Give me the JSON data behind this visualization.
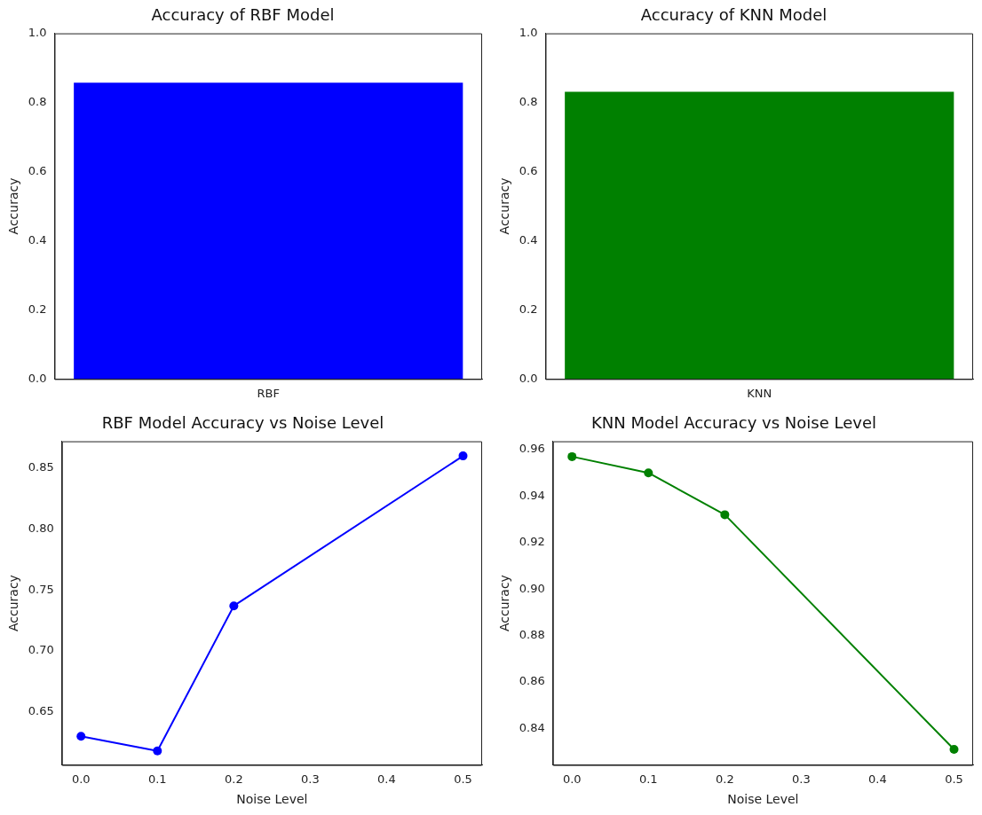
{
  "chart_data": [
    {
      "type": "bar",
      "title": "Accuracy of RBF Model",
      "ylabel": "Accuracy",
      "categories": [
        "RBF"
      ],
      "values": [
        0.857
      ],
      "color": "#0000ff",
      "ylim": [
        0,
        1
      ],
      "yticks": [
        {
          "value": 0,
          "label": "0.0"
        },
        0.2,
        0.4,
        0.6,
        0.8,
        {
          "value": 1,
          "label": "1.0"
        }
      ],
      "grid": false,
      "legend": false
    },
    {
      "type": "bar",
      "title": "Accuracy of KNN Model",
      "ylabel": "Accuracy",
      "categories": [
        "KNN"
      ],
      "values": [
        0.831
      ],
      "color": "#008000",
      "ylim": [
        0,
        1
      ],
      "yticks": [
        {
          "value": 0,
          "label": "0.0"
        },
        0.2,
        0.4,
        0.6,
        0.8,
        {
          "value": 1,
          "label": "1.0"
        }
      ],
      "grid": false,
      "legend": false
    },
    {
      "type": "line",
      "title": "RBF Model Accuracy vs Noise Level",
      "xlabel": "Noise Level",
      "ylabel": "Accuracy",
      "x": [
        0,
        0.1,
        0.2,
        0.5
      ],
      "values": [
        0.63,
        0.618,
        0.737,
        0.86
      ],
      "color": "#0000ff",
      "marker": "circle",
      "xlim": [
        -0.025,
        0.525
      ],
      "xticks": [
        {
          "value": 0,
          "label": "0.0"
        },
        0.1,
        0.2,
        0.3,
        0.4,
        0.5
      ],
      "ylim": [
        0.6065,
        0.872
      ],
      "yticks": [
        0.65,
        {
          "value": 0.7,
          "label": "0.70"
        },
        0.75,
        {
          "value": 0.8,
          "label": "0.80"
        },
        0.85
      ],
      "grid": false,
      "legend": false
    },
    {
      "type": "line",
      "title": "KNN Model Accuracy vs Noise Level",
      "xlabel": "Noise Level",
      "ylabel": "Accuracy",
      "x": [
        0,
        0.1,
        0.2,
        0.5
      ],
      "values": [
        0.957,
        0.95,
        0.932,
        0.831
      ],
      "color": "#008000",
      "marker": "circle",
      "xlim": [
        -0.025,
        0.525
      ],
      "xticks": [
        {
          "value": 0,
          "label": "0.0"
        },
        0.1,
        0.2,
        0.3,
        0.4,
        0.5
      ],
      "ylim": [
        0.8243,
        0.9636
      ],
      "yticks": [
        0.84,
        0.86,
        0.88,
        {
          "value": 0.9,
          "label": "0.90"
        },
        0.92,
        0.94,
        0.96
      ],
      "grid": false,
      "legend": false
    }
  ]
}
